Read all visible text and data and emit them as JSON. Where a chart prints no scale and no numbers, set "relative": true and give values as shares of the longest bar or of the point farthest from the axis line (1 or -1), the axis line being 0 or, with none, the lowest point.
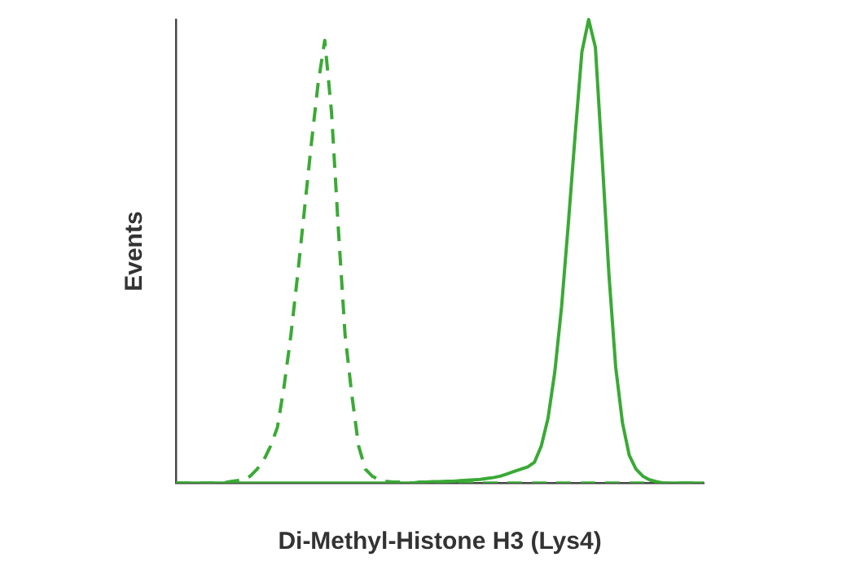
{
  "chart_data": {
    "type": "line",
    "relative": true,
    "xlabel": "Di-Methyl-Histone H3 (Lys4)",
    "ylabel": "Events",
    "legend": false,
    "grid": false,
    "marker": "none",
    "categories": [
      null,
      null,
      null,
      null,
      null,
      null,
      null,
      null,
      null,
      null,
      null,
      null,
      null,
      null,
      null,
      null,
      null,
      null,
      null,
      null,
      null,
      null,
      null,
      null,
      null,
      null,
      null,
      null,
      null,
      null,
      null,
      null,
      null,
      null,
      null,
      null,
      null,
      null,
      null,
      null,
      null,
      null,
      null,
      null,
      null,
      null,
      null,
      null,
      null,
      null,
      null,
      null,
      null,
      null,
      null,
      null,
      null,
      null,
      null,
      null,
      null,
      null,
      null,
      null,
      null,
      null,
      null,
      null,
      null,
      null,
      null,
      null,
      null,
      null,
      null,
      null,
      null,
      null,
      null
    ],
    "series": [
      {
        "color": "#3aaa35",
        "line_style": "dashed",
        "values": [
          0,
          0,
          0,
          0,
          0,
          0,
          0,
          0,
          0.003,
          0.005,
          0.008,
          0.015,
          0.03,
          0.05,
          0.08,
          0.12,
          0.21,
          0.32,
          0.45,
          0.59,
          0.73,
          0.86,
          0.955,
          0.8,
          0.55,
          0.32,
          0.19,
          0.08,
          0.03,
          0.015,
          0.007,
          0.004,
          0.002,
          0.002,
          0.002,
          0,
          0,
          0,
          0,
          0,
          0,
          0,
          0,
          0,
          0,
          0,
          0,
          0,
          0,
          0,
          0,
          0,
          0,
          0,
          0,
          0,
          0,
          0,
          0,
          0,
          0,
          0,
          0,
          0,
          0,
          0,
          0,
          0,
          0,
          0,
          0,
          0,
          0,
          0,
          0,
          0,
          0,
          0,
          0
        ]
      },
      {
        "color": "#3aaa35",
        "line_style": "solid",
        "values": [
          0,
          0,
          0,
          0,
          0,
          0,
          0,
          0,
          0,
          0,
          0,
          0,
          0,
          0,
          0,
          0,
          0,
          0,
          0,
          0,
          0,
          0,
          0,
          0,
          0,
          0,
          0,
          0,
          0,
          0,
          0,
          0,
          0,
          0,
          0,
          0,
          0.002,
          0.002,
          0.003,
          0.003,
          0.004,
          0.004,
          0.005,
          0.006,
          0.007,
          0.008,
          0.01,
          0.012,
          0.015,
          0.02,
          0.025,
          0.03,
          0.035,
          0.045,
          0.08,
          0.14,
          0.24,
          0.38,
          0.56,
          0.75,
          0.93,
          1,
          0.94,
          0.7,
          0.45,
          0.25,
          0.13,
          0.06,
          0.03,
          0.015,
          0.007,
          0.003,
          0,
          0,
          0,
          0,
          0,
          0,
          0
        ]
      }
    ]
  }
}
